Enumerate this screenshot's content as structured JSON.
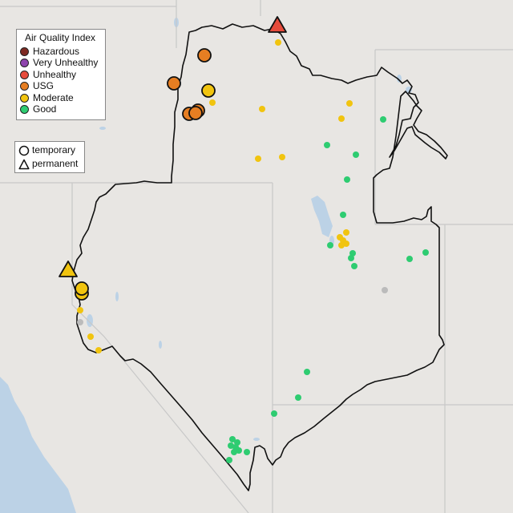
{
  "legend": {
    "title": "Air Quality Index",
    "categories": [
      {
        "label": "Hazardous",
        "color": "#7e2a22"
      },
      {
        "label": "Very Unhealthy",
        "color": "#8e44ad"
      },
      {
        "label": "Unhealthy",
        "color": "#e74c3c"
      },
      {
        "label": "USG",
        "color": "#e67e22"
      },
      {
        "label": "Moderate",
        "color": "#f1c40f"
      },
      {
        "label": "Good",
        "color": "#2ecc71"
      }
    ],
    "types": [
      {
        "label": "temporary",
        "shape": "circle"
      },
      {
        "label": "permanent",
        "shape": "triangle"
      }
    ]
  },
  "colors": {
    "land": "#e8e6e3",
    "water": "#bcd2e6",
    "state_border": "#c8c8c8",
    "region_outline": "#111111",
    "no_data": "#bbbbbb"
  }
}
